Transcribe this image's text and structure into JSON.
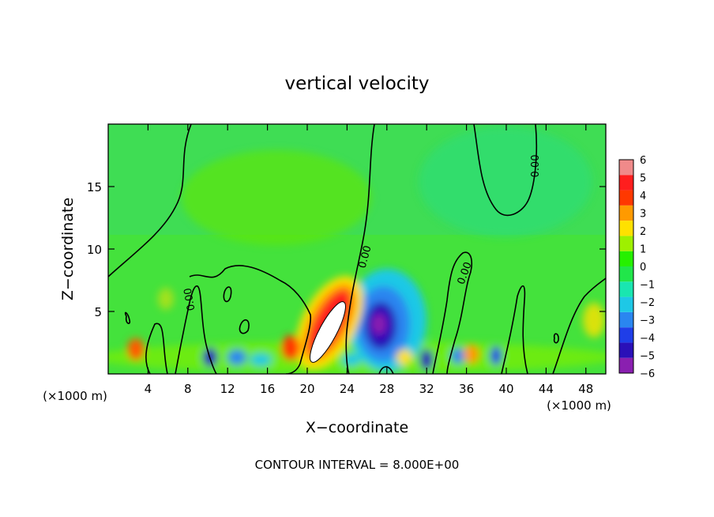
{
  "chart_data": {
    "type": "heatmap",
    "title": "vertical velocity",
    "xlabel": "X−coordinate",
    "ylabel": "Z−coordinate",
    "x_unit_left": "(×1000 m)",
    "x_unit_right": "(×1000 m)",
    "footer": "CONTOUR INTERVAL = 8.000E+00",
    "xlim": [
      0,
      50
    ],
    "ylim": [
      0,
      20
    ],
    "xticks": [
      4,
      8,
      12,
      16,
      20,
      24,
      28,
      32,
      36,
      40,
      44,
      48
    ],
    "yticks": [
      5,
      10,
      15
    ],
    "contour_labels": [
      "0.00",
      "0.00",
      "0.00",
      "0.00"
    ],
    "colorbar": {
      "levels": [
        -6,
        -5,
        -4,
        -3,
        -2,
        -1,
        0,
        1,
        2,
        3,
        4,
        5,
        6
      ],
      "labels": [
        "6",
        "5",
        "4",
        "3",
        "2",
        "1",
        "0",
        "−1",
        "−2",
        "−3",
        "−4",
        "−5",
        "−6"
      ],
      "colors": [
        "#8a1fb0",
        "#2a10b8",
        "#1f3ee8",
        "#2a86f0",
        "#1ec8e6",
        "#19e6b0",
        "#21e64a",
        "#26f000",
        "#9ef000",
        "#ffe100",
        "#ff9a00",
        "#ff3800",
        "#ff1e1e",
        "#f08a8a"
      ]
    },
    "features": [
      {
        "x": 22.5,
        "z": 4.0,
        "w": 6.0,
        "description": "updraft core",
        "max": 7.5
      },
      {
        "x": 27.5,
        "z": 4.5,
        "w": -5.5,
        "description": "downdraft core",
        "max": -6
      },
      {
        "x": 2.0,
        "z": 2.0,
        "w": 3.5
      },
      {
        "x": 19.0,
        "z": 2.5,
        "w": 3.0
      },
      {
        "x": 32.0,
        "z": 1.0,
        "w": -5.0
      },
      {
        "x": 10.5,
        "z": 1.5,
        "w": -3.5
      }
    ]
  }
}
